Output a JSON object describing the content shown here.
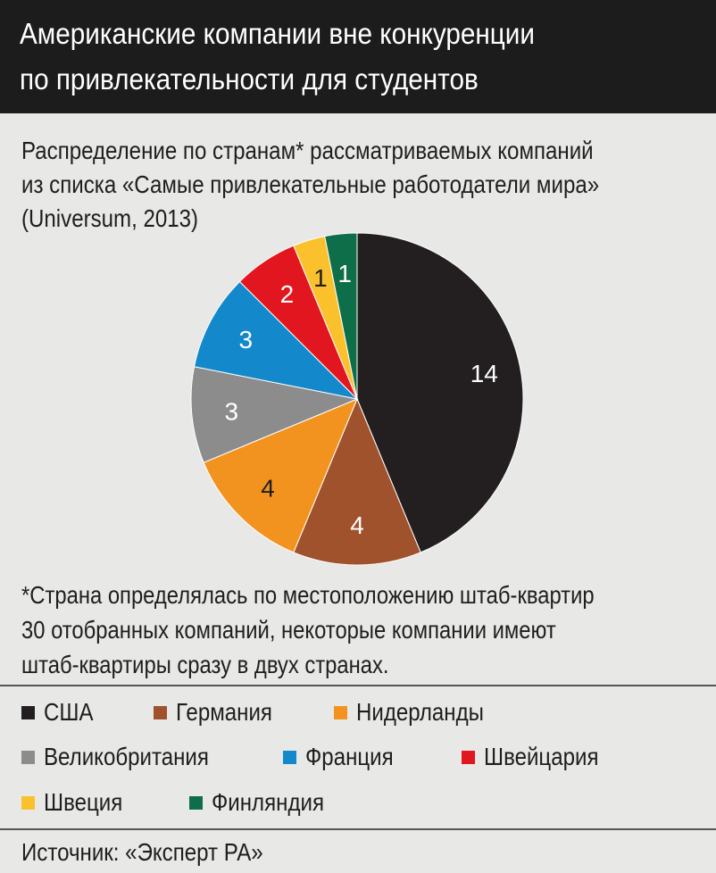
{
  "header": {
    "title": "Американские компании вне конкуренции\nпо привлекательности для студентов"
  },
  "subtitle": "Распределение по странам* рассматриваемых компаний\nиз списка «Самые привлекательные работодатели мира»\n(Universum, 2013)",
  "footnote": "*Страна определялась по местоположению штаб-квартир\n30 отобранных компаний, некоторые компании имеют\nштаб-квартиры сразу в двух странах.",
  "source": "Источник: «Эксперт РА»",
  "chart_data": {
    "type": "pie",
    "title": "",
    "slices": [
      {
        "name": "США",
        "value": 14,
        "color": "#231f20"
      },
      {
        "name": "Германия",
        "value": 4,
        "color": "#a0522d"
      },
      {
        "name": "Нидерланды",
        "value": 4,
        "color": "#f29320"
      },
      {
        "name": "Великобритания",
        "value": 3,
        "color": "#8c8c8c"
      },
      {
        "name": "Франция",
        "value": 3,
        "color": "#1389cc"
      },
      {
        "name": "Швейцария",
        "value": 2,
        "color": "#e2161e"
      },
      {
        "name": "Швеция",
        "value": 1,
        "color": "#fbc12d"
      },
      {
        "name": "Финляндия",
        "value": 1,
        "color": "#0f6e4a"
      }
    ],
    "start_angle": "12 o'clock",
    "direction": "clockwise",
    "legend_placement": "bottom"
  }
}
